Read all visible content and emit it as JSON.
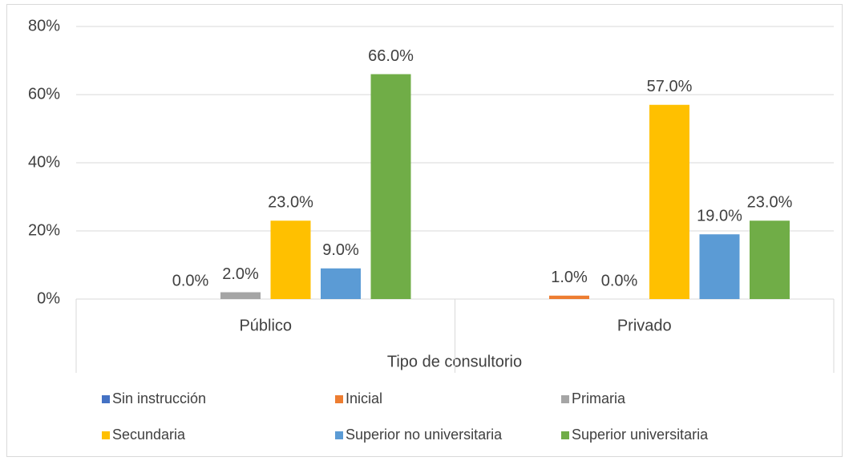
{
  "chart_data": {
    "type": "bar",
    "x_label": "Tipo de consultorio",
    "categories": [
      "Público",
      "Privado"
    ],
    "series": [
      {
        "name": "Sin instrucción",
        "color": "#4472c4",
        "values": [
          null,
          null
        ],
        "value_labels": [
          null,
          null
        ]
      },
      {
        "name": "Inicial",
        "color": "#ed7d31",
        "values": [
          0,
          1
        ],
        "value_labels": [
          "0.0%",
          "1.0%"
        ]
      },
      {
        "name": "Primaria",
        "color": "#a5a5a5",
        "values": [
          2,
          0
        ],
        "value_labels": [
          "2.0%",
          "0.0%"
        ]
      },
      {
        "name": "Secundaria",
        "color": "#ffc000",
        "values": [
          23,
          57
        ],
        "value_labels": [
          "23.0%",
          "57.0%"
        ]
      },
      {
        "name": "Superior no universitaria",
        "color": "#5b9bd5",
        "values": [
          9,
          19
        ],
        "value_labels": [
          "9.0%",
          "19.0%"
        ]
      },
      {
        "name": "Superior universitaria",
        "color": "#70ad47",
        "values": [
          66,
          23
        ],
        "value_labels": [
          "66.0%",
          "23.0%"
        ]
      }
    ],
    "ylim": [
      0,
      80
    ],
    "yticks": [
      {
        "value": 0,
        "label": "0%"
      },
      {
        "value": 20,
        "label": "20%"
      },
      {
        "value": 40,
        "label": "40%"
      },
      {
        "value": 60,
        "label": "60%"
      },
      {
        "value": 80,
        "label": "80%"
      }
    ],
    "grid": true,
    "legend": "bottom"
  }
}
